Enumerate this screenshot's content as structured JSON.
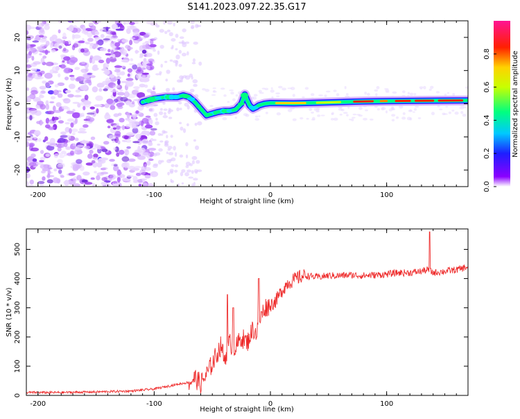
{
  "title": "S141.2023.097.22.35.G17",
  "colors": {
    "snr_line": "#ee2c2c",
    "axis": "#000000",
    "colorbar": [
      "#8b00ff",
      "#2a1bff",
      "#00b7ff",
      "#00ff7f",
      "#b7ff00",
      "#ffff00",
      "#ff7f00",
      "#ff0000",
      "#ff1493"
    ]
  },
  "chart_data": [
    {
      "type": "heatmap",
      "title": "S141.2023.097.22.35.G17",
      "xlabel": "Height of straight line (km)",
      "ylabel": "Frequency (Hz)",
      "xlim": [
        -210,
        170
      ],
      "ylim": [
        -25,
        25
      ],
      "xticks": [
        -200,
        -100,
        0,
        100
      ],
      "yticks": [
        -20,
        -10,
        0,
        10,
        20
      ],
      "ridge_x": [
        -110,
        -100,
        -90,
        -80,
        -75,
        -70,
        -65,
        -60,
        -55,
        -50,
        -45,
        -40,
        -35,
        -30,
        -25,
        -22,
        -20,
        -18,
        -15,
        -12,
        -10,
        -5,
        0,
        20,
        50,
        80,
        100,
        130,
        170
      ],
      "ridge_y": [
        0.5,
        1.5,
        2,
        2,
        2.5,
        2,
        0.5,
        -1.5,
        -3.5,
        -3,
        -2.5,
        -2.2,
        -2.2,
        -1.8,
        0,
        2.8,
        1,
        -0.5,
        -1.5,
        -1,
        -0.5,
        0,
        0.2,
        0.1,
        0.4,
        0.7,
        0.8,
        0.9,
        1.0
      ],
      "colorbar": {
        "label": "Normalized spectral amplitude",
        "range": [
          0,
          1
        ],
        "ticks": [
          "0.0",
          "0.2",
          "0.4",
          "0.6",
          "0.8"
        ]
      }
    },
    {
      "type": "line",
      "xlabel": "Height of straight line (km)",
      "ylabel": "SNR (10 * v/v)",
      "xlim": [
        -210,
        170
      ],
      "ylim": [
        0,
        570
      ],
      "xticks": [
        -200,
        -100,
        0,
        100
      ],
      "yticks": [
        0,
        100,
        200,
        300,
        400,
        500
      ],
      "series": [
        {
          "name": "SNR",
          "x": [
            -210,
            -180,
            -150,
            -120,
            -100,
            -90,
            -80,
            -70,
            -65,
            -60,
            -55,
            -50,
            -45,
            -42,
            -40,
            -35,
            -30,
            -25,
            -20,
            -15,
            -12,
            -10,
            -5,
            0,
            5,
            10,
            15,
            20,
            25,
            30,
            40,
            50,
            60,
            70,
            80,
            90,
            100,
            110,
            120,
            130,
            135,
            140,
            150,
            160,
            170
          ],
          "y": [
            10,
            10,
            12,
            15,
            22,
            30,
            38,
            45,
            60,
            40,
            70,
            110,
            150,
            175,
            120,
            180,
            160,
            200,
            180,
            230,
            210,
            250,
            300,
            310,
            325,
            360,
            385,
            395,
            405,
            410,
            405,
            410,
            410,
            412,
            410,
            412,
            415,
            420,
            420,
            425,
            430,
            420,
            425,
            430,
            440
          ]
        }
      ],
      "spikes": [
        {
          "x": -37,
          "y": 345
        },
        {
          "x": -32,
          "y": 300
        },
        {
          "x": -10,
          "y": 400
        },
        {
          "x": 137,
          "y": 560
        }
      ]
    }
  ]
}
